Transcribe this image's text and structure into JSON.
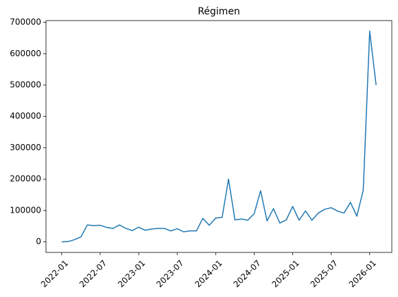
{
  "chart_data": {
    "type": "line",
    "title": "Régimen",
    "x": [
      "2022-01",
      "2022-02",
      "2022-03",
      "2022-04",
      "2022-05",
      "2022-06",
      "2022-07",
      "2022-08",
      "2022-09",
      "2022-10",
      "2022-11",
      "2022-12",
      "2023-01",
      "2023-02",
      "2023-03",
      "2023-04",
      "2023-05",
      "2023-06",
      "2023-07",
      "2023-08",
      "2023-09",
      "2023-10",
      "2023-11",
      "2023-12",
      "2024-01",
      "2024-02",
      "2024-03",
      "2024-04",
      "2024-05",
      "2024-06",
      "2024-07",
      "2024-08",
      "2024-09",
      "2024-10",
      "2024-11",
      "2024-12",
      "2025-01",
      "2025-02",
      "2025-03",
      "2025-04",
      "2025-05",
      "2025-06",
      "2025-07",
      "2025-08",
      "2025-09",
      "2025-10",
      "2025-11",
      "2025-12",
      "2026-01",
      "2026-02"
    ],
    "series": [
      {
        "color": "#1f77b4",
        "values": [
          0,
          1000,
          7000,
          16000,
          54000,
          52000,
          53000,
          46000,
          43000,
          54000,
          43000,
          36000,
          47000,
          37000,
          41000,
          43000,
          43000,
          35000,
          42000,
          32000,
          35000,
          35000,
          75000,
          53000,
          76000,
          78000,
          200000,
          70000,
          73000,
          69000,
          90000,
          163000,
          67000,
          106000,
          60000,
          70000,
          113000,
          69000,
          99000,
          69000,
          92000,
          104000,
          109000,
          98000,
          92000,
          126000,
          82000,
          165000,
          672000,
          500000
        ]
      }
    ],
    "xticks": [
      "2022-01",
      "2022-07",
      "2023-01",
      "2023-07",
      "2024-01",
      "2024-07",
      "2025-01",
      "2025-07",
      "2026-01"
    ],
    "ylim": [
      -33600,
      705600
    ],
    "yticks": [
      0,
      100000,
      200000,
      300000,
      400000,
      500000,
      600000,
      700000
    ]
  }
}
